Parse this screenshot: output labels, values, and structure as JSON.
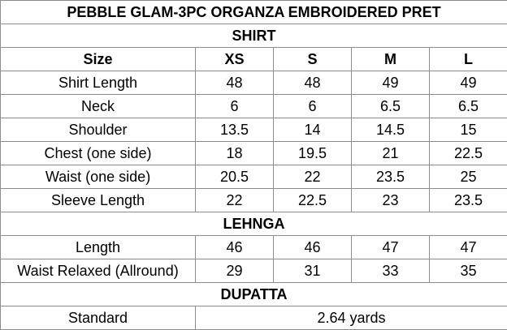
{
  "title": "PEBBLE GLAM-3PC ORGANZA EMBROIDERED PRET",
  "shirt": {
    "heading": "SHIRT",
    "size_label": "Size",
    "sizes": [
      "XS",
      "S",
      "M",
      "L"
    ],
    "rows": [
      {
        "label": "Shirt Length",
        "values": [
          "48",
          "48",
          "49",
          "49"
        ]
      },
      {
        "label": "Neck",
        "values": [
          "6",
          "6",
          "6.5",
          "6.5"
        ]
      },
      {
        "label": "Shoulder",
        "values": [
          "13.5",
          "14",
          "14.5",
          "15"
        ]
      },
      {
        "label": "Chest (one side)",
        "values": [
          "18",
          "19.5",
          "21",
          "22.5"
        ]
      },
      {
        "label": "Waist (one side)",
        "values": [
          "20.5",
          "22",
          "23.5",
          "25"
        ]
      },
      {
        "label": "Sleeve Length",
        "values": [
          "22",
          "22.5",
          "23",
          "23.5"
        ]
      }
    ]
  },
  "lehnga": {
    "heading": "LEHNGA",
    "rows": [
      {
        "label": "Length",
        "values": [
          "46",
          "46",
          "47",
          "47"
        ]
      },
      {
        "label": "Waist Relaxed (Allround)",
        "values": [
          "29",
          "31",
          "33",
          "35"
        ]
      }
    ]
  },
  "dupatta": {
    "heading": "DUPATTA",
    "rows": [
      {
        "label": "Standard",
        "value": "2.64 yards"
      }
    ]
  }
}
